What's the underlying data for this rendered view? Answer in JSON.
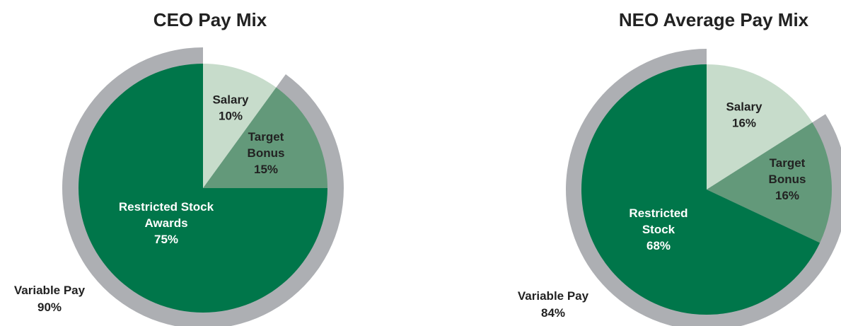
{
  "colors": {
    "restricted": "#00764a",
    "bonus": "#63997a",
    "salary": "#c7dccb",
    "ring": "#adafb3",
    "dark_text": "#222222",
    "light_text": "#ffffff"
  },
  "chart_data": [
    {
      "type": "pie",
      "title": "CEO Pay Mix",
      "slices": [
        {
          "label": [
            "Salary",
            "10%"
          ],
          "value": 10,
          "color_key": "salary",
          "text": "dark_text"
        },
        {
          "label": [
            "Target",
            "Bonus",
            "15%"
          ],
          "value": 15,
          "color_key": "bonus",
          "text": "dark_text"
        },
        {
          "label": [
            "Restricted Stock",
            "Awards",
            "75%"
          ],
          "value": 75,
          "color_key": "restricted",
          "text": "light_text"
        }
      ],
      "variable_pay": {
        "label": "Variable Pay",
        "value": "90%",
        "percent": 90
      }
    },
    {
      "type": "pie",
      "title": "NEO Average Pay Mix",
      "slices": [
        {
          "label": [
            "Salary",
            "16%"
          ],
          "value": 16,
          "color_key": "salary",
          "text": "dark_text"
        },
        {
          "label": [
            "Target",
            "Bonus",
            "16%"
          ],
          "value": 16,
          "color_key": "bonus",
          "text": "dark_text"
        },
        {
          "label": [
            "Restricted",
            "Stock",
            "68%"
          ],
          "value": 68,
          "color_key": "restricted",
          "text": "light_text"
        }
      ],
      "variable_pay": {
        "label": "Variable Pay",
        "value": "84%",
        "percent": 84
      }
    }
  ]
}
